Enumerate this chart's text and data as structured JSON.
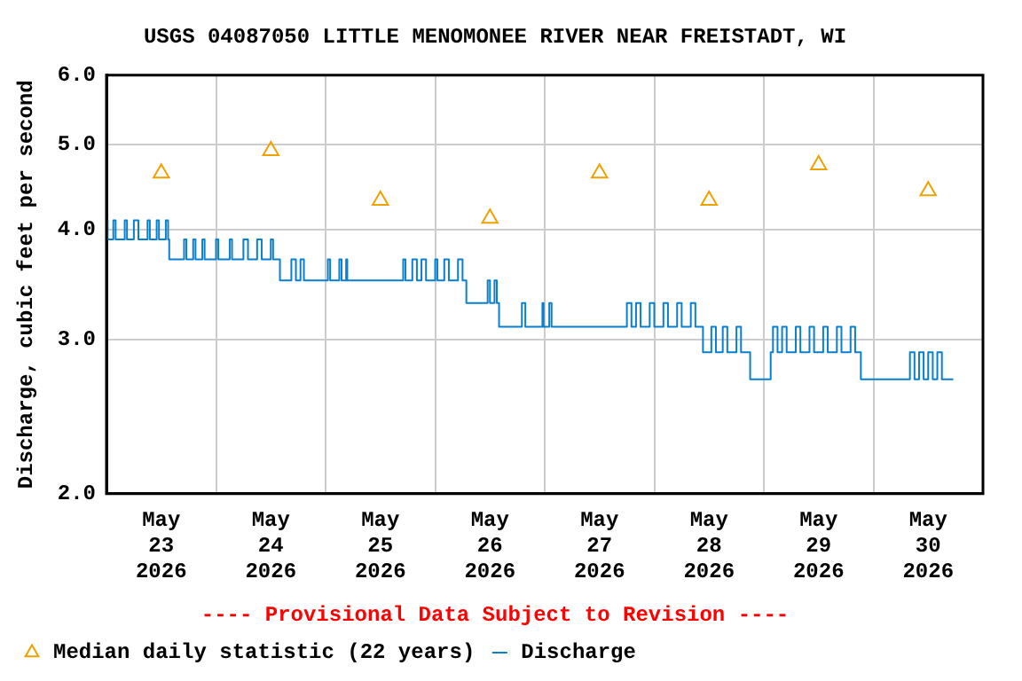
{
  "chart_data": {
    "type": "line",
    "title": "USGS 04087050 LITTLE MENOMONEE RIVER NEAR FREISTADT, WI",
    "ylabel": "Discharge, cubic feet per second",
    "annotations": [
      "---- Provisional Data Subject to Revision ----"
    ],
    "log": "y",
    "grid": true,
    "legend": "bottom left",
    "xlim": [
      "2026-05-23T00:00",
      "2026-05-31T00:00"
    ],
    "xticks": [
      {
        "value": "2026-05-23T12:00",
        "label": "May\n23\n2026"
      },
      {
        "value": "2026-05-24T00:00",
        "label": null
      },
      {
        "value": "2026-05-24T12:00",
        "label": "May\n24\n2026"
      },
      {
        "value": "2026-05-25T00:00",
        "label": null
      },
      {
        "value": "2026-05-25T12:00",
        "label": "May\n25\n2026"
      },
      {
        "value": "2026-05-26T00:00",
        "label": null
      },
      {
        "value": "2026-05-26T12:00",
        "label": "May\n26\n2026"
      },
      {
        "value": "2026-05-27T00:00",
        "label": null
      },
      {
        "value": "2026-05-27T12:00",
        "label": "May\n27\n2026"
      },
      {
        "value": "2026-05-28T00:00",
        "label": null
      },
      {
        "value": "2026-05-28T12:00",
        "label": "May\n28\n2026"
      },
      {
        "value": "2026-05-29T00:00",
        "label": null
      },
      {
        "value": "2026-05-29T12:00",
        "label": "May\n29\n2026"
      },
      {
        "value": "2026-05-30T00:00",
        "label": null
      },
      {
        "value": "2026-05-30T12:00",
        "label": "May\n30\n2026"
      }
    ],
    "ylim": [
      2,
      6
    ],
    "yticks": [
      {
        "value": 2,
        "label": "2.0"
      },
      {
        "value": 3,
        "label": "3.0"
      },
      {
        "value": 4,
        "label": "4.0"
      },
      {
        "value": 5,
        "label": "5.0"
      },
      {
        "value": 6,
        "label": "6.0"
      }
    ],
    "series": [
      {
        "name": "Median daily statistic (22 years)",
        "type": "scatter",
        "marker": "triangle",
        "color": "#f0a000",
        "x": [
          "2026-05-23T12:00",
          "2026-05-24T12:00",
          "2026-05-25T12:00",
          "2026-05-26T12:00",
          "2026-05-27T12:00",
          "2026-05-28T12:00",
          "2026-05-29T12:00",
          "2026-05-30T12:00"
        ],
        "values": [
          4.64,
          4.92,
          4.32,
          4.12,
          4.64,
          4.32,
          4.74,
          4.43
        ]
      },
      {
        "name": "Discharge",
        "type": "step",
        "marker": "none",
        "color": "#0a7fd0",
        "x": [
          "2026-05-23T00:15",
          "2026-05-23T01:30",
          "2026-05-23T02:00",
          "2026-05-23T04:00",
          "2026-05-23T04:30",
          "2026-05-23T06:00",
          "2026-05-23T07:00",
          "2026-05-23T09:00",
          "2026-05-23T09:30",
          "2026-05-23T11:00",
          "2026-05-23T11:30",
          "2026-05-23T13:00",
          "2026-05-23T13:30",
          "2026-05-23T13:45",
          "2026-05-23T17:00",
          "2026-05-23T17:30",
          "2026-05-23T19:00",
          "2026-05-23T19:30",
          "2026-05-23T21:00",
          "2026-05-23T21:30",
          "2026-05-24T00:00",
          "2026-05-24T00:30",
          "2026-05-24T03:00",
          "2026-05-24T03:30",
          "2026-05-24T06:00",
          "2026-05-24T07:00",
          "2026-05-24T09:00",
          "2026-05-24T10:00",
          "2026-05-24T12:00",
          "2026-05-24T12:30",
          "2026-05-24T14:00",
          "2026-05-24T16:30",
          "2026-05-24T17:30",
          "2026-05-24T18:30",
          "2026-05-24T19:15",
          "2026-05-25T00:30",
          "2026-05-25T01:00",
          "2026-05-25T03:00",
          "2026-05-25T03:30",
          "2026-05-25T04:30",
          "2026-05-25T04:45",
          "2026-05-25T17:00",
          "2026-05-25T17:30",
          "2026-05-25T19:00",
          "2026-05-25T20:00",
          "2026-05-25T21:00",
          "2026-05-25T22:00",
          "2026-05-26T00:00",
          "2026-05-26T00:30",
          "2026-05-26T02:00",
          "2026-05-26T03:00",
          "2026-05-26T05:00",
          "2026-05-26T06:00",
          "2026-05-26T06:50",
          "2026-05-26T11:30",
          "2026-05-26T12:00",
          "2026-05-26T13:00",
          "2026-05-26T13:30",
          "2026-05-26T14:00",
          "2026-05-26T19:00",
          "2026-05-26T19:45",
          "2026-05-26T23:30",
          "2026-05-26T23:45",
          "2026-05-27T01:00",
          "2026-05-27T01:30",
          "2026-05-27T18:00",
          "2026-05-27T19:00",
          "2026-05-27T20:00",
          "2026-05-27T21:00",
          "2026-05-27T23:00",
          "2026-05-28T00:00",
          "2026-05-28T02:00",
          "2026-05-28T03:00",
          "2026-05-28T05:00",
          "2026-05-28T06:00",
          "2026-05-28T08:00",
          "2026-05-28T09:00",
          "2026-05-28T10:40",
          "2026-05-28T12:30",
          "2026-05-28T13:30",
          "2026-05-28T15:00",
          "2026-05-28T16:00",
          "2026-05-28T18:00",
          "2026-05-28T19:00",
          "2026-05-28T21:00",
          "2026-05-29T01:30",
          "2026-05-29T02:00",
          "2026-05-29T03:00",
          "2026-05-29T04:00",
          "2026-05-29T05:00",
          "2026-05-29T07:00",
          "2026-05-29T08:00",
          "2026-05-29T10:00",
          "2026-05-29T11:00",
          "2026-05-29T13:00",
          "2026-05-29T14:00",
          "2026-05-29T16:00",
          "2026-05-29T17:00",
          "2026-05-29T19:00",
          "2026-05-29T20:00",
          "2026-05-29T21:15",
          "2026-05-30T08:00",
          "2026-05-30T09:00",
          "2026-05-30T10:00",
          "2026-05-30T11:00",
          "2026-05-30T12:00",
          "2026-05-30T13:00",
          "2026-05-30T14:00",
          "2026-05-30T15:00",
          "2026-05-30T16:00",
          "2026-05-30T17:30"
        ],
        "values": [
          4.1,
          3.9,
          4.1,
          3.9,
          4.1,
          3.9,
          4.1,
          3.9,
          4.1,
          3.9,
          4.1,
          3.9,
          4.1,
          3.9,
          3.7,
          3.9,
          3.7,
          3.9,
          3.7,
          3.9,
          3.7,
          3.9,
          3.7,
          3.9,
          3.7,
          3.9,
          3.7,
          3.9,
          3.7,
          3.9,
          3.7,
          3.5,
          3.7,
          3.5,
          3.7,
          3.5,
          3.7,
          3.5,
          3.7,
          3.5,
          3.7,
          3.5,
          3.7,
          3.5,
          3.7,
          3.5,
          3.7,
          3.5,
          3.7,
          3.5,
          3.7,
          3.5,
          3.7,
          3.5,
          3.3,
          3.5,
          3.3,
          3.5,
          3.3,
          3.1,
          3.3,
          3.1,
          3.3,
          3.1,
          3.3,
          3.1,
          3.3,
          3.1,
          3.3,
          3.1,
          3.3,
          3.1,
          3.3,
          3.1,
          3.3,
          3.1,
          3.3,
          3.1,
          2.9,
          3.1,
          2.9,
          3.1,
          2.9,
          3.1,
          2.9,
          2.7,
          2.9,
          3.1,
          2.9,
          3.1,
          2.9,
          3.1,
          2.9,
          3.1,
          2.9,
          3.1,
          2.9,
          3.1,
          2.9,
          3.1,
          2.9,
          2.7,
          2.9,
          2.7,
          2.9,
          2.7,
          2.9,
          2.7,
          2.9,
          2.7,
          2.7
        ]
      }
    ]
  }
}
